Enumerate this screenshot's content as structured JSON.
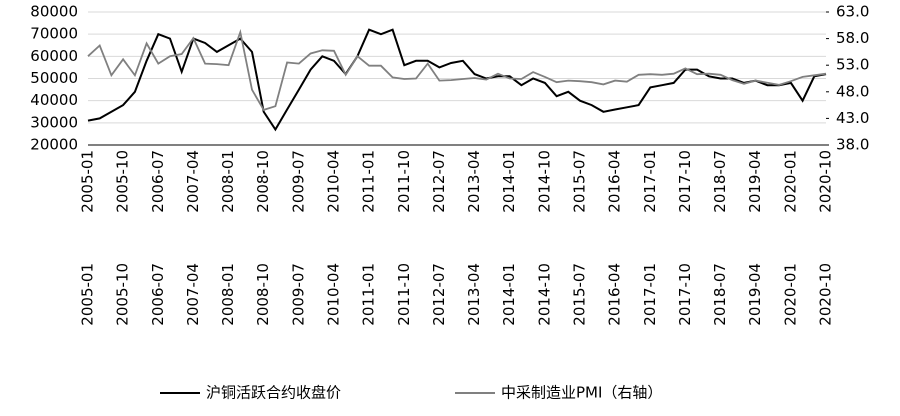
{
  "chart_data": {
    "type": "line",
    "categories": [
      "2005-01",
      null,
      null,
      "2005-10",
      null,
      null,
      "2006-07",
      null,
      null,
      "2007-04",
      null,
      null,
      "2008-01",
      null,
      null,
      "2008-10",
      null,
      null,
      "2009-07",
      null,
      null,
      "2010-04",
      null,
      null,
      "2011-01",
      null,
      null,
      "2011-10",
      null,
      null,
      "2012-07",
      null,
      null,
      "2013-04",
      null,
      null,
      "2014-01",
      null,
      null,
      "2014-10",
      null,
      null,
      "2015-07",
      null,
      null,
      "2016-04",
      null,
      null,
      "2017-01",
      null,
      null,
      "2017-10",
      null,
      null,
      "2018-07",
      null,
      null,
      "2019-04",
      null,
      null,
      "2020-01",
      null,
      null,
      "2020-10"
    ],
    "series": [
      {
        "name": "沪铜活跃合约收盘价",
        "color": "#000000",
        "axis": "y",
        "values": [
          31000,
          32000,
          35000,
          38000,
          44000,
          58000,
          70000,
          68000,
          53000,
          68000,
          66000,
          62000,
          65000,
          68000,
          62000,
          35000,
          27000,
          36000,
          45000,
          54000,
          60000,
          58000,
          52000,
          60000,
          72000,
          70000,
          72000,
          56000,
          58000,
          58000,
          55000,
          57000,
          58000,
          52000,
          50000,
          51000,
          51000,
          47000,
          50000,
          48000,
          42000,
          44000,
          40000,
          38000,
          35000,
          36000,
          37000,
          38000,
          46000,
          47000,
          48000,
          54000,
          54000,
          51000,
          50000,
          50000,
          48000,
          49000,
          47000,
          47000,
          48000,
          40000,
          51000,
          52000
        ]
      },
      {
        "name": "中采制造业PMI（右轴）",
        "color": "#808080",
        "axis": "y2",
        "values": [
          54.7,
          56.7,
          51.1,
          54.1,
          51.1,
          57.1,
          53.3,
          54.7,
          55.1,
          58.1,
          53.3,
          53.2,
          53.0,
          59.2,
          48.4,
          44.6,
          45.3,
          53.5,
          53.3,
          55.2,
          55.8,
          55.7,
          51.2,
          54.7,
          52.9,
          52.9,
          50.7,
          50.4,
          50.5,
          53.3,
          50.1,
          50.2,
          50.4,
          50.6,
          50.3,
          51.4,
          50.5,
          50.4,
          51.7,
          50.8,
          49.8,
          50.1,
          50.0,
          49.8,
          49.4,
          50.1,
          49.9,
          51.2,
          51.3,
          51.2,
          51.4,
          52.4,
          51.3,
          51.4,
          51.2,
          50.2,
          49.5,
          50.1,
          49.7,
          49.3,
          50.0,
          50.8,
          51.1,
          51.4
        ]
      }
    ],
    "ylim": [
      20000,
      80000
    ],
    "yticks": [
      20000,
      30000,
      40000,
      50000,
      60000,
      70000,
      80000
    ],
    "y2lim": [
      38,
      63
    ],
    "y2ticks": [
      {
        "value": 38,
        "label": "38.0"
      },
      {
        "value": 43,
        "label": "43.0"
      },
      {
        "value": 48,
        "label": "48.0"
      },
      {
        "value": 53,
        "label": "53.0"
      },
      {
        "value": 58,
        "label": "58.0"
      },
      {
        "value": 63,
        "label": "63.0"
      }
    ],
    "grid": true
  }
}
